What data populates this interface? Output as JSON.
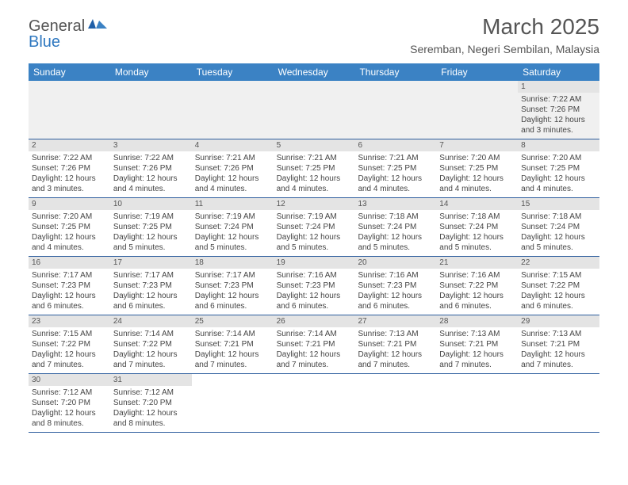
{
  "logo": {
    "general": "General",
    "blue": "Blue"
  },
  "header": {
    "title": "March 2025",
    "subtitle": "Seremban, Negeri Sembilan, Malaysia"
  },
  "colors": {
    "header_bg": "#3b82c4",
    "daynum_bg": "#e4e4e4",
    "row_border": "#2f5f9f",
    "text": "#444444",
    "logo_blue": "#2f78c0"
  },
  "weekdays": [
    "Sunday",
    "Monday",
    "Tuesday",
    "Wednesday",
    "Thursday",
    "Friday",
    "Saturday"
  ],
  "weeks": [
    [
      {
        "n": "",
        "sr": "",
        "ss": "",
        "dl": ""
      },
      {
        "n": "",
        "sr": "",
        "ss": "",
        "dl": ""
      },
      {
        "n": "",
        "sr": "",
        "ss": "",
        "dl": ""
      },
      {
        "n": "",
        "sr": "",
        "ss": "",
        "dl": ""
      },
      {
        "n": "",
        "sr": "",
        "ss": "",
        "dl": ""
      },
      {
        "n": "",
        "sr": "",
        "ss": "",
        "dl": ""
      },
      {
        "n": "1",
        "sr": "Sunrise: 7:22 AM",
        "ss": "Sunset: 7:26 PM",
        "dl": "Daylight: 12 hours and 3 minutes."
      }
    ],
    [
      {
        "n": "2",
        "sr": "Sunrise: 7:22 AM",
        "ss": "Sunset: 7:26 PM",
        "dl": "Daylight: 12 hours and 3 minutes."
      },
      {
        "n": "3",
        "sr": "Sunrise: 7:22 AM",
        "ss": "Sunset: 7:26 PM",
        "dl": "Daylight: 12 hours and 4 minutes."
      },
      {
        "n": "4",
        "sr": "Sunrise: 7:21 AM",
        "ss": "Sunset: 7:26 PM",
        "dl": "Daylight: 12 hours and 4 minutes."
      },
      {
        "n": "5",
        "sr": "Sunrise: 7:21 AM",
        "ss": "Sunset: 7:25 PM",
        "dl": "Daylight: 12 hours and 4 minutes."
      },
      {
        "n": "6",
        "sr": "Sunrise: 7:21 AM",
        "ss": "Sunset: 7:25 PM",
        "dl": "Daylight: 12 hours and 4 minutes."
      },
      {
        "n": "7",
        "sr": "Sunrise: 7:20 AM",
        "ss": "Sunset: 7:25 PM",
        "dl": "Daylight: 12 hours and 4 minutes."
      },
      {
        "n": "8",
        "sr": "Sunrise: 7:20 AM",
        "ss": "Sunset: 7:25 PM",
        "dl": "Daylight: 12 hours and 4 minutes."
      }
    ],
    [
      {
        "n": "9",
        "sr": "Sunrise: 7:20 AM",
        "ss": "Sunset: 7:25 PM",
        "dl": "Daylight: 12 hours and 4 minutes."
      },
      {
        "n": "10",
        "sr": "Sunrise: 7:19 AM",
        "ss": "Sunset: 7:25 PM",
        "dl": "Daylight: 12 hours and 5 minutes."
      },
      {
        "n": "11",
        "sr": "Sunrise: 7:19 AM",
        "ss": "Sunset: 7:24 PM",
        "dl": "Daylight: 12 hours and 5 minutes."
      },
      {
        "n": "12",
        "sr": "Sunrise: 7:19 AM",
        "ss": "Sunset: 7:24 PM",
        "dl": "Daylight: 12 hours and 5 minutes."
      },
      {
        "n": "13",
        "sr": "Sunrise: 7:18 AM",
        "ss": "Sunset: 7:24 PM",
        "dl": "Daylight: 12 hours and 5 minutes."
      },
      {
        "n": "14",
        "sr": "Sunrise: 7:18 AM",
        "ss": "Sunset: 7:24 PM",
        "dl": "Daylight: 12 hours and 5 minutes."
      },
      {
        "n": "15",
        "sr": "Sunrise: 7:18 AM",
        "ss": "Sunset: 7:24 PM",
        "dl": "Daylight: 12 hours and 5 minutes."
      }
    ],
    [
      {
        "n": "16",
        "sr": "Sunrise: 7:17 AM",
        "ss": "Sunset: 7:23 PM",
        "dl": "Daylight: 12 hours and 6 minutes."
      },
      {
        "n": "17",
        "sr": "Sunrise: 7:17 AM",
        "ss": "Sunset: 7:23 PM",
        "dl": "Daylight: 12 hours and 6 minutes."
      },
      {
        "n": "18",
        "sr": "Sunrise: 7:17 AM",
        "ss": "Sunset: 7:23 PM",
        "dl": "Daylight: 12 hours and 6 minutes."
      },
      {
        "n": "19",
        "sr": "Sunrise: 7:16 AM",
        "ss": "Sunset: 7:23 PM",
        "dl": "Daylight: 12 hours and 6 minutes."
      },
      {
        "n": "20",
        "sr": "Sunrise: 7:16 AM",
        "ss": "Sunset: 7:23 PM",
        "dl": "Daylight: 12 hours and 6 minutes."
      },
      {
        "n": "21",
        "sr": "Sunrise: 7:16 AM",
        "ss": "Sunset: 7:22 PM",
        "dl": "Daylight: 12 hours and 6 minutes."
      },
      {
        "n": "22",
        "sr": "Sunrise: 7:15 AM",
        "ss": "Sunset: 7:22 PM",
        "dl": "Daylight: 12 hours and 6 minutes."
      }
    ],
    [
      {
        "n": "23",
        "sr": "Sunrise: 7:15 AM",
        "ss": "Sunset: 7:22 PM",
        "dl": "Daylight: 12 hours and 7 minutes."
      },
      {
        "n": "24",
        "sr": "Sunrise: 7:14 AM",
        "ss": "Sunset: 7:22 PM",
        "dl": "Daylight: 12 hours and 7 minutes."
      },
      {
        "n": "25",
        "sr": "Sunrise: 7:14 AM",
        "ss": "Sunset: 7:21 PM",
        "dl": "Daylight: 12 hours and 7 minutes."
      },
      {
        "n": "26",
        "sr": "Sunrise: 7:14 AM",
        "ss": "Sunset: 7:21 PM",
        "dl": "Daylight: 12 hours and 7 minutes."
      },
      {
        "n": "27",
        "sr": "Sunrise: 7:13 AM",
        "ss": "Sunset: 7:21 PM",
        "dl": "Daylight: 12 hours and 7 minutes."
      },
      {
        "n": "28",
        "sr": "Sunrise: 7:13 AM",
        "ss": "Sunset: 7:21 PM",
        "dl": "Daylight: 12 hours and 7 minutes."
      },
      {
        "n": "29",
        "sr": "Sunrise: 7:13 AM",
        "ss": "Sunset: 7:21 PM",
        "dl": "Daylight: 12 hours and 7 minutes."
      }
    ],
    [
      {
        "n": "30",
        "sr": "Sunrise: 7:12 AM",
        "ss": "Sunset: 7:20 PM",
        "dl": "Daylight: 12 hours and 8 minutes."
      },
      {
        "n": "31",
        "sr": "Sunrise: 7:12 AM",
        "ss": "Sunset: 7:20 PM",
        "dl": "Daylight: 12 hours and 8 minutes."
      },
      {
        "n": "",
        "sr": "",
        "ss": "",
        "dl": ""
      },
      {
        "n": "",
        "sr": "",
        "ss": "",
        "dl": ""
      },
      {
        "n": "",
        "sr": "",
        "ss": "",
        "dl": ""
      },
      {
        "n": "",
        "sr": "",
        "ss": "",
        "dl": ""
      },
      {
        "n": "",
        "sr": "",
        "ss": "",
        "dl": ""
      }
    ]
  ]
}
